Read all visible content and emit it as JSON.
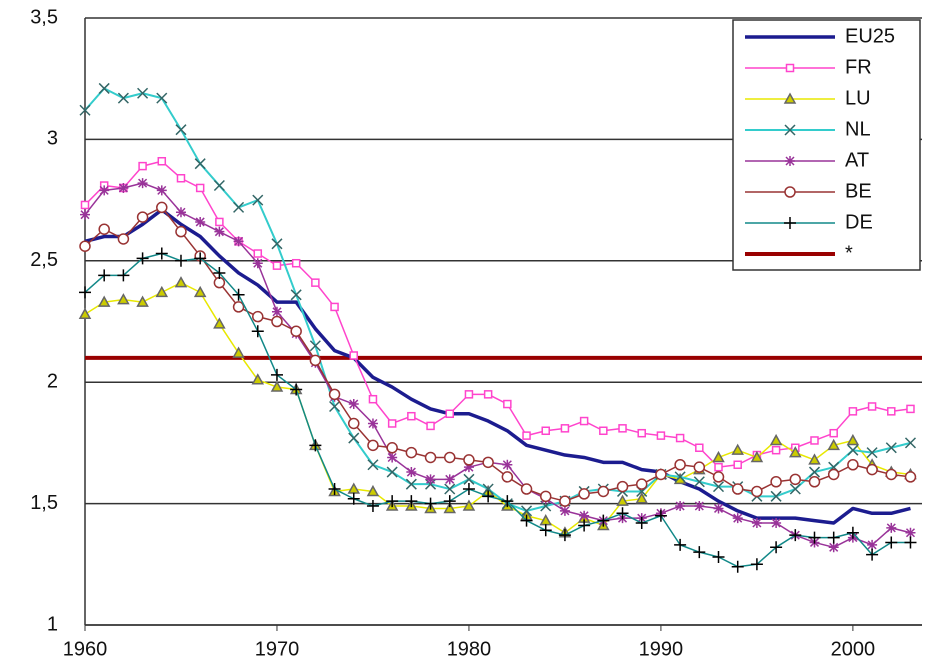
{
  "chart_data": {
    "type": "line",
    "x": [
      1960,
      1961,
      1962,
      1963,
      1964,
      1965,
      1966,
      1967,
      1968,
      1969,
      1970,
      1971,
      1972,
      1973,
      1974,
      1975,
      1976,
      1977,
      1978,
      1979,
      1980,
      1981,
      1982,
      1983,
      1984,
      1985,
      1986,
      1987,
      1988,
      1989,
      1990,
      1991,
      1992,
      1993,
      1994,
      1995,
      1996,
      1997,
      1998,
      1999,
      2000,
      2001,
      2002,
      2003
    ],
    "series": [
      {
        "name": "EU25",
        "color": "#1c1c8f",
        "marker": null,
        "line_width": 3.5,
        "values": [
          2.58,
          2.6,
          2.6,
          2.65,
          2.71,
          2.65,
          2.6,
          2.52,
          2.45,
          2.4,
          2.33,
          2.33,
          2.22,
          2.13,
          2.1,
          2.02,
          1.98,
          1.93,
          1.89,
          1.87,
          1.87,
          1.84,
          1.8,
          1.74,
          1.72,
          1.7,
          1.69,
          1.67,
          1.67,
          1.64,
          1.63,
          1.59,
          1.56,
          1.51,
          1.47,
          1.44,
          1.44,
          1.44,
          1.43,
          1.42,
          1.48,
          1.46,
          1.46,
          1.48
        ]
      },
      {
        "name": "FR",
        "color": "#ff44cc",
        "marker": "square",
        "line_width": 1.5,
        "values": [
          2.73,
          2.81,
          2.8,
          2.89,
          2.91,
          2.84,
          2.8,
          2.66,
          2.58,
          2.53,
          2.48,
          2.49,
          2.41,
          2.31,
          2.11,
          1.93,
          1.83,
          1.86,
          1.82,
          1.87,
          1.95,
          1.95,
          1.91,
          1.78,
          1.8,
          1.81,
          1.84,
          1.8,
          1.81,
          1.79,
          1.78,
          1.77,
          1.73,
          1.65,
          1.66,
          1.7,
          1.72,
          1.73,
          1.76,
          1.79,
          1.88,
          1.9,
          1.88,
          1.89
        ]
      },
      {
        "name": "LU",
        "color": "#e8e800",
        "marker": "triangle",
        "line_width": 1.5,
        "values": [
          2.28,
          2.33,
          2.34,
          2.33,
          2.37,
          2.41,
          2.37,
          2.24,
          2.12,
          2.01,
          1.98,
          1.97,
          1.74,
          1.55,
          1.56,
          1.55,
          1.49,
          1.49,
          1.48,
          1.48,
          1.49,
          1.55,
          1.49,
          1.45,
          1.43,
          1.38,
          1.44,
          1.41,
          1.51,
          1.52,
          1.62,
          1.6,
          1.64,
          1.69,
          1.72,
          1.69,
          1.76,
          1.71,
          1.68,
          1.74,
          1.76,
          1.66,
          1.63,
          1.62
        ]
      },
      {
        "name": "NL",
        "color": "#33cccc",
        "marker": "x",
        "line_width": 2,
        "values": [
          3.12,
          3.21,
          3.17,
          3.19,
          3.17,
          3.04,
          2.9,
          2.81,
          2.72,
          2.75,
          2.57,
          2.36,
          2.15,
          1.9,
          1.77,
          1.66,
          1.63,
          1.58,
          1.58,
          1.56,
          1.6,
          1.56,
          1.5,
          1.47,
          1.49,
          1.51,
          1.55,
          1.56,
          1.55,
          1.55,
          1.62,
          1.61,
          1.59,
          1.57,
          1.57,
          1.53,
          1.53,
          1.56,
          1.63,
          1.65,
          1.72,
          1.71,
          1.73,
          1.75
        ]
      },
      {
        "name": "AT",
        "color": "#993399",
        "marker": "star",
        "line_width": 1.5,
        "values": [
          2.69,
          2.79,
          2.8,
          2.82,
          2.79,
          2.7,
          2.66,
          2.62,
          2.58,
          2.49,
          2.29,
          2.2,
          2.08,
          1.94,
          1.91,
          1.83,
          1.69,
          1.63,
          1.6,
          1.6,
          1.65,
          1.67,
          1.66,
          1.56,
          1.52,
          1.47,
          1.45,
          1.43,
          1.44,
          1.44,
          1.46,
          1.49,
          1.49,
          1.48,
          1.44,
          1.42,
          1.42,
          1.37,
          1.34,
          1.32,
          1.36,
          1.33,
          1.4,
          1.38
        ]
      },
      {
        "name": "BE",
        "color": "#993333",
        "marker": "circle",
        "line_width": 1.5,
        "values": [
          2.56,
          2.63,
          2.59,
          2.68,
          2.72,
          2.62,
          2.52,
          2.41,
          2.31,
          2.27,
          2.25,
          2.21,
          2.09,
          1.95,
          1.83,
          1.74,
          1.73,
          1.71,
          1.69,
          1.69,
          1.68,
          1.67,
          1.61,
          1.56,
          1.53,
          1.51,
          1.54,
          1.55,
          1.57,
          1.58,
          1.62,
          1.66,
          1.65,
          1.61,
          1.56,
          1.55,
          1.59,
          1.6,
          1.59,
          1.62,
          1.66,
          1.64,
          1.62,
          1.61
        ]
      },
      {
        "name": "DE",
        "color": "#118888",
        "marker": "plus",
        "line_width": 1.5,
        "values": [
          2.37,
          2.44,
          2.44,
          2.51,
          2.53,
          2.5,
          2.51,
          2.45,
          2.36,
          2.21,
          2.03,
          1.97,
          1.74,
          1.56,
          1.52,
          1.49,
          1.51,
          1.51,
          1.5,
          1.51,
          1.56,
          1.53,
          1.51,
          1.43,
          1.39,
          1.37,
          1.41,
          1.43,
          1.46,
          1.42,
          1.45,
          1.33,
          1.3,
          1.28,
          1.24,
          1.25,
          1.32,
          1.37,
          1.36,
          1.36,
          1.38,
          1.29,
          1.34,
          1.34
        ]
      }
    ],
    "reference_line": {
      "name": "*",
      "value": 2.1,
      "color": "#990000"
    },
    "xlim": [
      1960,
      2003.6
    ],
    "xticks": [
      1960,
      1970,
      1980,
      1990,
      2000
    ],
    "ylim": [
      1,
      3.5
    ],
    "yticks": [
      1,
      {
        "value": 1.5,
        "label": "1,5"
      },
      2,
      {
        "value": 2.5,
        "label": "2,5"
      },
      3,
      {
        "value": 3.5,
        "label": "3,5"
      }
    ],
    "grid": true,
    "legend": "top-right"
  }
}
